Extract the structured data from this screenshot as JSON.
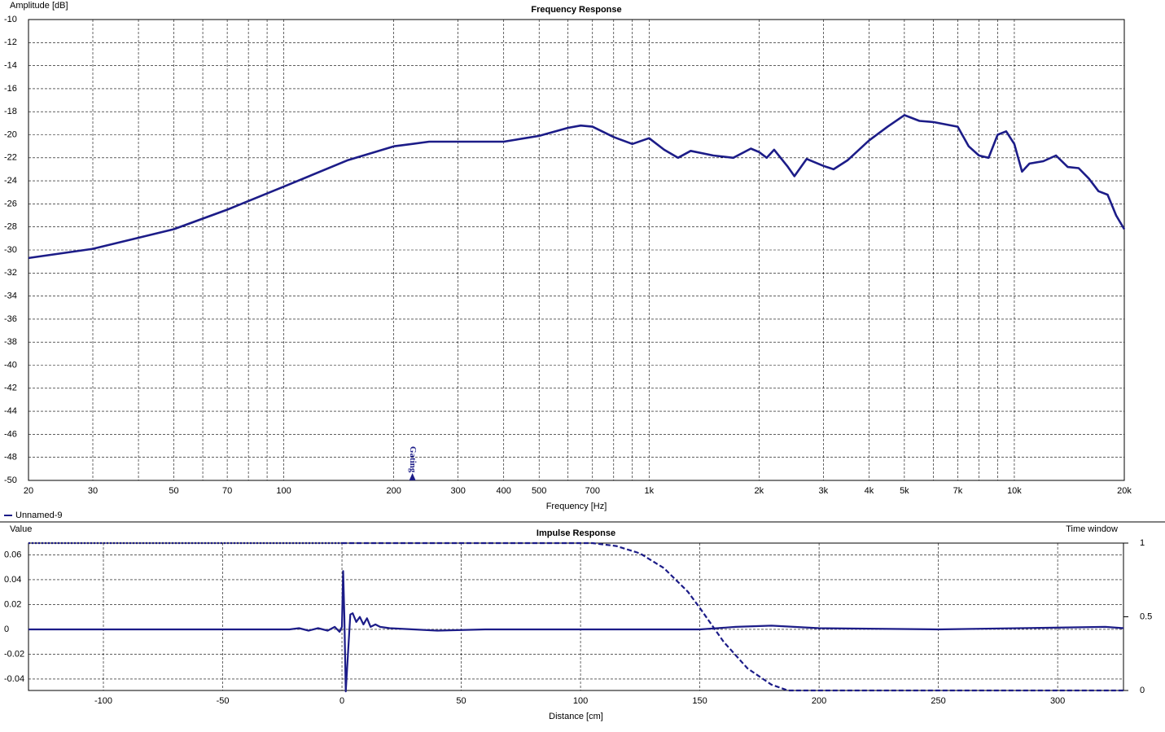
{
  "chart_data": [
    {
      "type": "line",
      "title": "Frequency Response",
      "ylabel": "Amplitude [dB]",
      "xlabel": "Frequency [Hz]",
      "xscale": "log",
      "xlim": [
        20,
        20000
      ],
      "ylim": [
        -50,
        -10
      ],
      "xticks": [
        20,
        30,
        50,
        70,
        100,
        200,
        300,
        400,
        500,
        700,
        {
          "value": 1000,
          "label": "1k"
        },
        {
          "value": 2000,
          "label": "2k"
        },
        {
          "value": 3000,
          "label": "3k"
        },
        {
          "value": 4000,
          "label": "4k"
        },
        {
          "value": 5000,
          "label": "5k"
        },
        {
          "value": 7000,
          "label": "7k"
        },
        {
          "value": 10000,
          "label": "10k"
        },
        {
          "value": 20000,
          "label": "20k"
        }
      ],
      "xminorticks": [
        40,
        60,
        80,
        90,
        600,
        800,
        900,
        6000,
        8000,
        9000
      ],
      "yticks": [
        -10,
        -12,
        -14,
        -16,
        -18,
        -20,
        -22,
        -24,
        -26,
        -28,
        -30,
        -32,
        -34,
        -36,
        -38,
        -40,
        -42,
        -44,
        -46,
        -48,
        -50
      ],
      "grid": true,
      "legend": true,
      "annotations": [
        {
          "text": "Gating",
          "x": 225
        }
      ],
      "series": [
        {
          "name": "Unnamed-9",
          "color": "#1c1c88",
          "x": [
            20,
            30,
            50,
            70,
            100,
            150,
            200,
            250,
            300,
            400,
            500,
            600,
            650,
            700,
            800,
            900,
            1000,
            1100,
            1200,
            1300,
            1500,
            1700,
            1900,
            2000,
            2100,
            2200,
            2400,
            2500,
            2700,
            3000,
            3200,
            3500,
            4000,
            4500,
            5000,
            5500,
            6000,
            7000,
            7500,
            8000,
            8500,
            9000,
            9500,
            10000,
            10500,
            11000,
            12000,
            13000,
            14000,
            15000,
            16000,
            17000,
            18000,
            19000,
            20000
          ],
          "values": [
            -30.7,
            -29.9,
            -28.2,
            -26.5,
            -24.5,
            -22.2,
            -21.0,
            -20.6,
            -20.6,
            -20.6,
            -20.1,
            -19.4,
            -19.2,
            -19.3,
            -20.2,
            -20.8,
            -20.3,
            -21.3,
            -22.0,
            -21.4,
            -21.8,
            -22.0,
            -21.2,
            -21.5,
            -22.0,
            -21.3,
            -22.8,
            -23.6,
            -22.1,
            -22.7,
            -23.0,
            -22.2,
            -20.5,
            -19.3,
            -18.3,
            -18.8,
            -18.9,
            -19.3,
            -21.0,
            -21.8,
            -22.0,
            -20.0,
            -19.7,
            -20.8,
            -23.2,
            -22.5,
            -22.3,
            -21.8,
            -22.8,
            -22.9,
            -23.8,
            -24.9,
            -25.2,
            -27.0,
            -28.2
          ]
        }
      ]
    },
    {
      "type": "line",
      "title": "Impulse Response",
      "ylabel": "Value",
      "y2label": "Time window",
      "xlabel": "Distance [cm]",
      "xlim": [
        -131.4,
        327.6
      ],
      "ylim": [
        -0.0492,
        0.0695
      ],
      "y2lim": [
        0,
        1
      ],
      "xticks": [
        -100,
        -50,
        0,
        50,
        100,
        150,
        200,
        250,
        300
      ],
      "yticks": [
        0.06,
        0.04,
        0.02,
        0,
        -0.02,
        -0.04
      ],
      "y2ticks": [
        1,
        0.5,
        0
      ],
      "grid": true,
      "series": [
        {
          "color": "#1c1c88",
          "x": [
            -131.4,
            -22,
            -18,
            -14,
            -10,
            -6,
            -3,
            -1,
            0,
            0.5,
            1,
            1.6,
            2.5,
            3.5,
            4.5,
            6,
            7.5,
            9,
            10.5,
            12,
            14,
            16,
            20,
            30,
            40,
            60,
            100,
            150,
            165,
            180,
            200,
            250,
            320,
            327.6
          ],
          "values": [
            0,
            0,
            0.001,
            -0.001,
            0.001,
            -0.001,
            0.002,
            -0.002,
            0.002,
            0.047,
            0.01,
            -0.05,
            -0.02,
            0.012,
            0.013,
            0.006,
            0.01,
            0.004,
            0.009,
            0.002,
            0.004,
            0.002,
            0.001,
            0,
            -0.001,
            0,
            0,
            0,
            0.002,
            0.003,
            0.001,
            0,
            0.002,
            0.001
          ]
        },
        {
          "color": "#1c1c88",
          "axis": "y2",
          "dash": "dotted",
          "x": [
            -131.4,
            0
          ],
          "values": [
            1,
            1
          ]
        },
        {
          "color": "#1c1c88",
          "axis": "y2",
          "dash": "dashed",
          "x": [
            0,
            105,
            115,
            125,
            135,
            145,
            150,
            160,
            170,
            180,
            187,
            327.6
          ],
          "values": [
            1,
            1,
            0.98,
            0.93,
            0.83,
            0.67,
            0.56,
            0.33,
            0.15,
            0.04,
            0,
            0
          ]
        }
      ]
    }
  ]
}
